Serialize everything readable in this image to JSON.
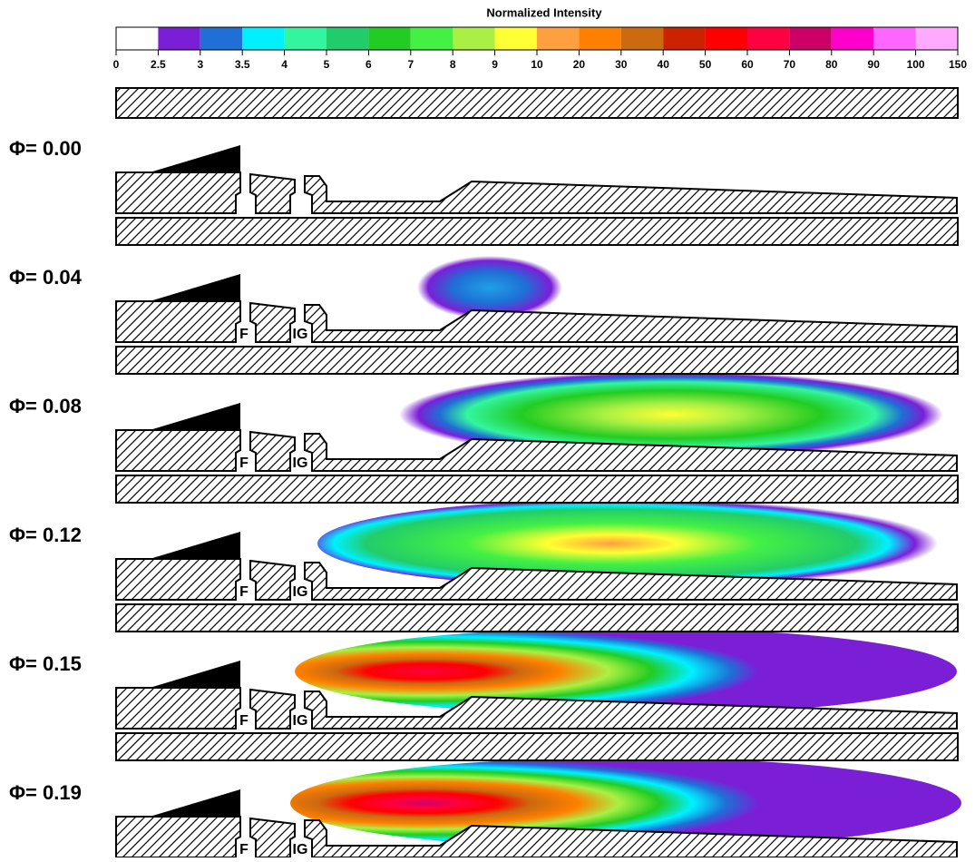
{
  "colorbar": {
    "title": "Normalized Intensity",
    "ticks": [
      0,
      2.5,
      3,
      3.5,
      4,
      5,
      6,
      7,
      8,
      9,
      10,
      20,
      30,
      40,
      50,
      60,
      70,
      80,
      90,
      100,
      150
    ],
    "colors": [
      "#ffffff",
      "#7a1fd6",
      "#1f6fd6",
      "#00f0ff",
      "#33f5a0",
      "#22cc6a",
      "#22cc22",
      "#44f044",
      "#aaf044",
      "#ffff33",
      "#ffa040",
      "#ff8000",
      "#cc6a10",
      "#cc2200",
      "#ff0000",
      "#ff0040",
      "#cc0066",
      "#ff00cc",
      "#ff66ff",
      "#ffaaff"
    ]
  },
  "panels": [
    {
      "label": "Φ= 0.00"
    },
    {
      "label": "Φ= 0.04",
      "markers": [
        "F",
        "IG"
      ]
    },
    {
      "label": "Φ= 0.08",
      "markers": [
        "F",
        "IG"
      ]
    },
    {
      "label": "Φ= 0.12",
      "markers": [
        "F",
        "IG"
      ]
    },
    {
      "label": "Φ= 0.15",
      "markers": [
        "F",
        "IG"
      ]
    },
    {
      "label": "Φ= 0.19",
      "markers": [
        "F",
        "IG"
      ]
    }
  ]
}
